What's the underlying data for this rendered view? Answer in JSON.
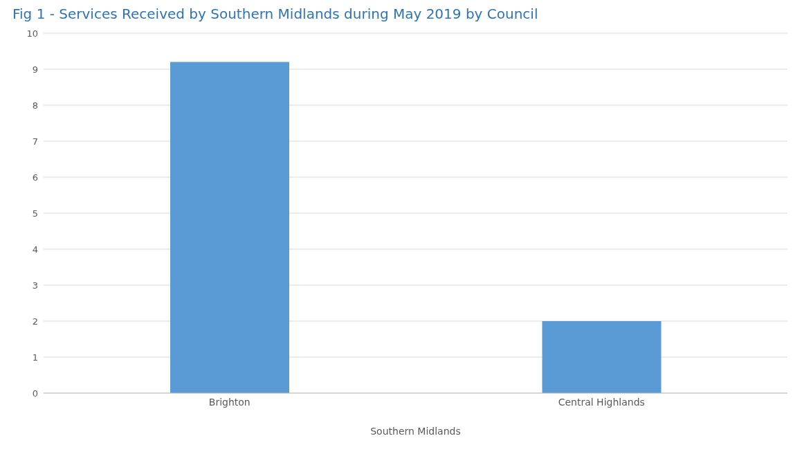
{
  "chart_data": {
    "type": "bar",
    "title": "Fig 1 - Services Received by Southern Midlands during May 2019 by Council",
    "xlabel": "Southern Midlands",
    "categories": [
      "Brighton",
      "Central Highlands"
    ],
    "values": [
      9.2,
      2
    ],
    "color": "#5b9bd5",
    "ylim": [
      0,
      10
    ],
    "yticks": [
      0,
      1,
      2,
      3,
      4,
      5,
      6,
      7,
      8,
      9,
      10
    ],
    "grid": "y"
  }
}
